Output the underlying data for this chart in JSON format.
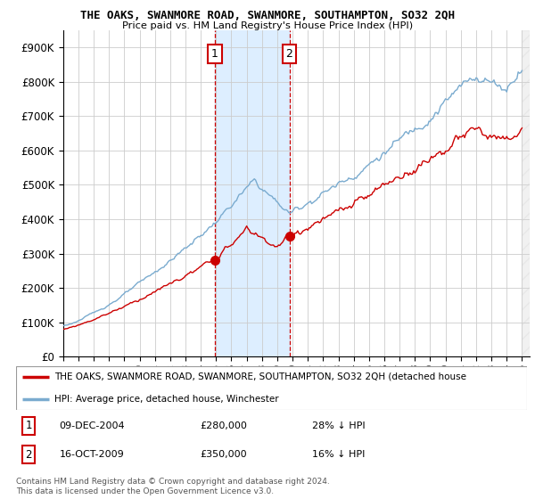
{
  "title": "THE OAKS, SWANMORE ROAD, SWANMORE, SOUTHAMPTON, SO32 2QH",
  "subtitle": "Price paid vs. HM Land Registry's House Price Index (HPI)",
  "legend_line1": "THE OAKS, SWANMORE ROAD, SWANMORE, SOUTHAMPTON, SO32 2QH (detached house",
  "legend_line2": "HPI: Average price, detached house, Winchester",
  "footer": "Contains HM Land Registry data © Crown copyright and database right 2024.\nThis data is licensed under the Open Government Licence v3.0.",
  "transaction1_date": "09-DEC-2004",
  "transaction1_price": "£280,000",
  "transaction1_pct": "28% ↓ HPI",
  "transaction2_date": "16-OCT-2009",
  "transaction2_price": "£350,000",
  "transaction2_pct": "16% ↓ HPI",
  "yticks": [
    0,
    100000,
    200000,
    300000,
    400000,
    500000,
    600000,
    700000,
    800000,
    900000
  ],
  "ytick_labels": [
    "£0",
    "£100K",
    "£200K",
    "£300K",
    "£400K",
    "£500K",
    "£600K",
    "£700K",
    "£800K",
    "£900K"
  ],
  "red_color": "#cc0000",
  "blue_color": "#7aabcf",
  "shade_color": "#ddeeff",
  "marker1_x": 2004.92,
  "marker1_y": 280000,
  "marker2_x": 2009.79,
  "marker2_y": 350000,
  "grid_color": "#cccccc",
  "xmin": 1995,
  "xmax": 2025.5,
  "ylim_max": 950000,
  "n_months": 361
}
